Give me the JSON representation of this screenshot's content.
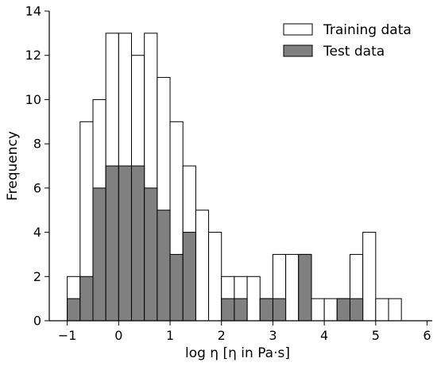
{
  "chart_data": {
    "type": "bar",
    "subtype": "overlaid-histogram",
    "xlabel": "log η [η in Pa·s]",
    "ylabel": "Frequency",
    "xlim": [
      -1.35,
      6.1
    ],
    "ylim": [
      0,
      14
    ],
    "xticks": [
      -1,
      0,
      1,
      2,
      3,
      4,
      5,
      6
    ],
    "yticks": [
      0,
      2,
      4,
      6,
      8,
      10,
      12,
      14
    ],
    "bin_width": 0.25,
    "bin_starts": [
      -1.0,
      -0.75,
      -0.5,
      -0.25,
      0.0,
      0.25,
      0.5,
      0.75,
      1.0,
      1.25,
      1.5,
      1.75,
      2.0,
      2.25,
      2.5,
      2.75,
      3.0,
      3.25,
      3.5,
      3.75,
      4.0,
      4.25,
      4.5,
      4.75,
      5.0,
      5.25,
      5.5
    ],
    "grid": false,
    "legend_position": "top-right",
    "series": [
      {
        "name": "Training data",
        "color": "#ffffff",
        "values": [
          2,
          9,
          10,
          13,
          13,
          12,
          13,
          11,
          9,
          7,
          5,
          4,
          2,
          2,
          2,
          1,
          3,
          3,
          3,
          1,
          1,
          1,
          3,
          4,
          1,
          1,
          0
        ]
      },
      {
        "name": "Test data",
        "color": "#808080",
        "values": [
          1,
          2,
          6,
          7,
          7,
          7,
          6,
          5,
          3,
          4,
          0,
          0,
          1,
          1,
          0,
          1,
          1,
          0,
          3,
          0,
          0,
          1,
          1,
          0,
          0,
          0,
          0
        ]
      }
    ]
  }
}
